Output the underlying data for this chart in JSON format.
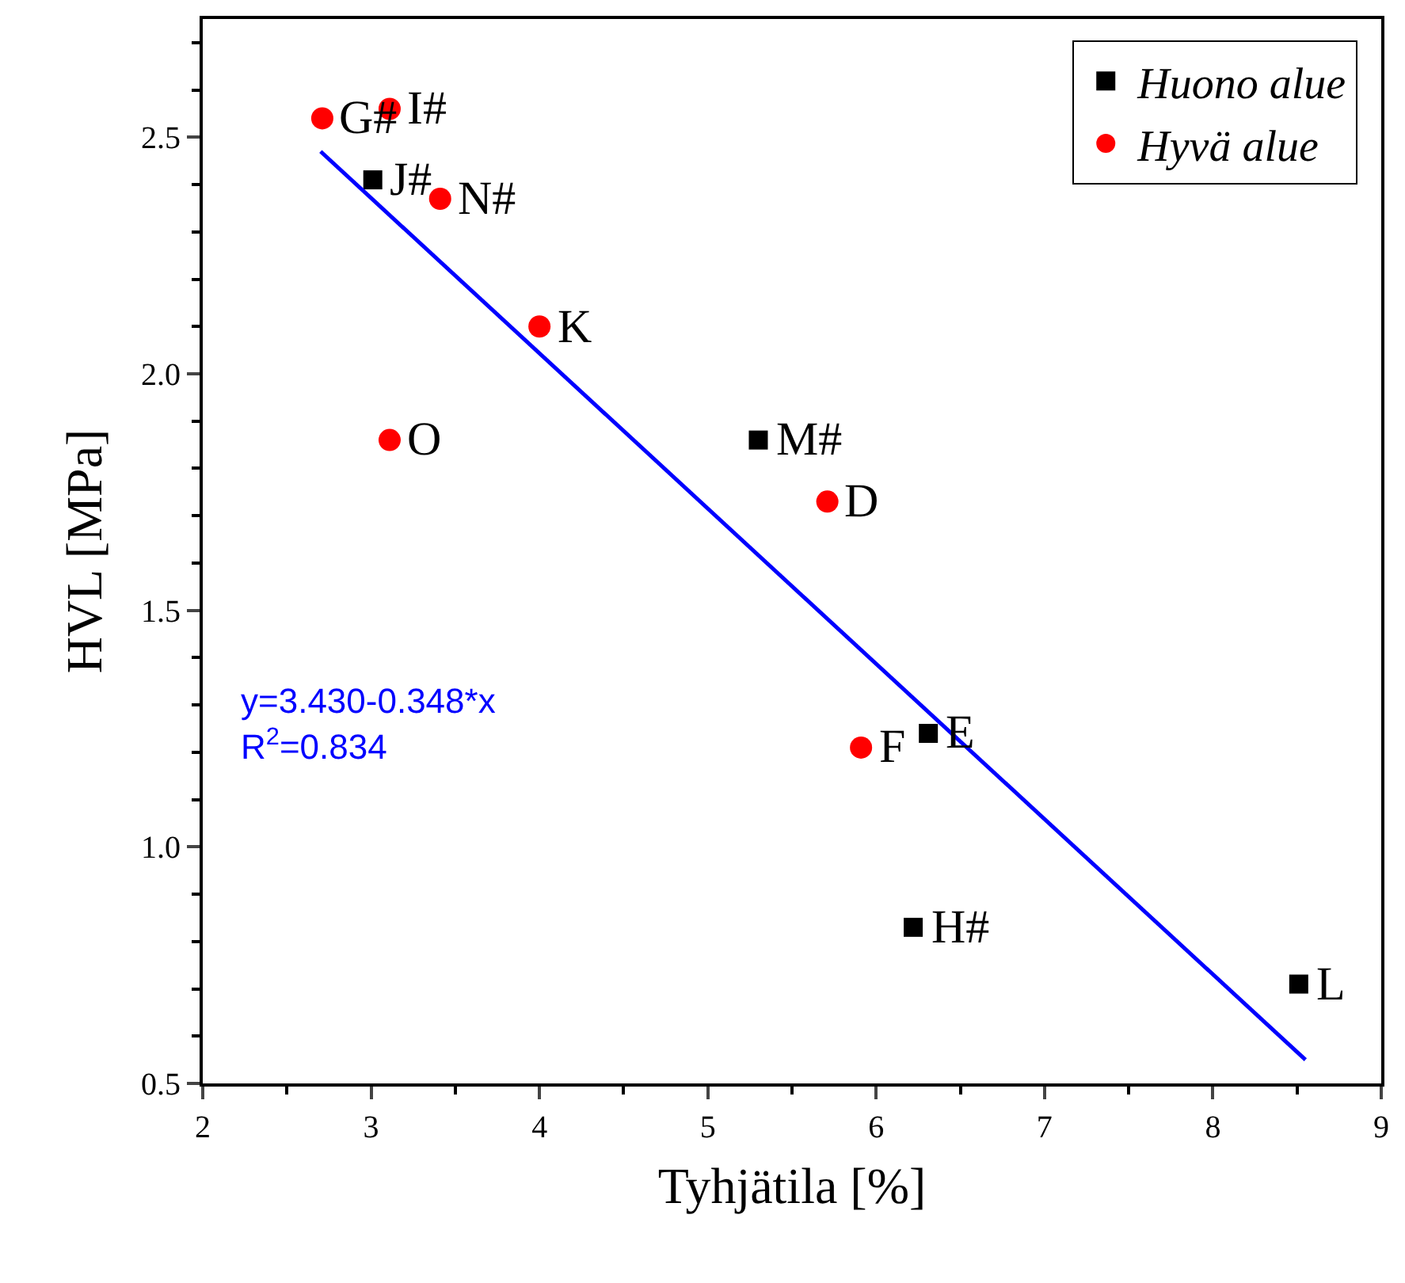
{
  "chart_data": {
    "type": "scatter",
    "xlabel": "Tyhjätila [%]",
    "ylabel": "HVL [MPa]",
    "xlim": [
      2,
      9
    ],
    "xticks": [
      2,
      3,
      4,
      5,
      6,
      7,
      8,
      9
    ],
    "ylim": [
      0.5,
      2.75
    ],
    "yticks": [
      0.5,
      {
        "value": 1,
        "label": "1.0"
      },
      1.5,
      {
        "value": 2,
        "label": "2.0"
      },
      2.5
    ],
    "series": [
      {
        "name": "Huono alue",
        "color": "#000000",
        "marker": "square",
        "x": [
          3.01,
          5.3,
          6.31,
          6.22,
          8.51
        ],
        "values": [
          2.41,
          1.86,
          1.24,
          0.83,
          0.71
        ]
      },
      {
        "name": "Hyvä alue",
        "color": "#ff0000",
        "marker": "circle",
        "x": [
          2.71,
          3.11,
          3.41,
          4.0,
          3.11,
          5.71,
          5.91
        ],
        "values": [
          2.54,
          2.56,
          2.37,
          2.1,
          1.86,
          1.73,
          1.21
        ]
      },
      {
        "type": "line",
        "color": "#0000ff",
        "marker": "none",
        "x": [
          2.7,
          8.55
        ],
        "values": [
          2.47,
          0.55
        ]
      }
    ],
    "annotations": [
      {
        "text": "J#",
        "x": 3.01,
        "y": 2.41
      },
      {
        "text": "M#",
        "x": 5.3,
        "y": 1.86
      },
      {
        "text": "E",
        "x": 6.31,
        "y": 1.24
      },
      {
        "text": "H#",
        "x": 6.22,
        "y": 0.83
      },
      {
        "text": "L",
        "x": 8.51,
        "y": 0.71
      },
      {
        "text": "G#",
        "x": 2.71,
        "y": 2.54
      },
      {
        "text": "I#",
        "x": 3.11,
        "y": 2.56
      },
      {
        "text": "N#",
        "x": 3.41,
        "y": 2.37
      },
      {
        "text": "K",
        "x": 4.0,
        "y": 2.1
      },
      {
        "text": "O",
        "x": 3.11,
        "y": 1.86
      },
      {
        "text": "D",
        "x": 5.71,
        "y": 1.73
      },
      {
        "text": "F",
        "x": 5.91,
        "y": 1.21
      },
      "y=3.430-0.348*x",
      "R$^{2}$=0.834"
    ],
    "legend": "top right"
  }
}
